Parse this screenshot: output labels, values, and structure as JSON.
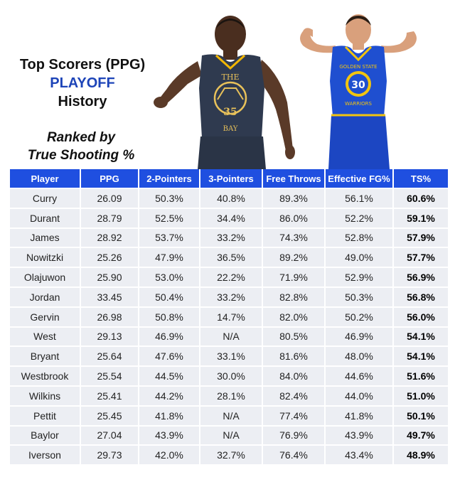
{
  "header": {
    "title_line1": "Top Scorers (PPG)",
    "title_line2": "PLAYOFF",
    "title_line3": "History",
    "subtitle_line1": "Ranked by",
    "subtitle_line2": "True Shooting %"
  },
  "colors": {
    "header_bg": "#1f4fe0",
    "row_bg": "#eceef3",
    "title_accent": "#1d44b8"
  },
  "players_art": {
    "left_jersey_text": "THE",
    "left_jersey_number": "35",
    "left_jersey_bottom": "BAY",
    "right_jersey_text": "GOLDEN STATE",
    "right_jersey_number": "30",
    "right_jersey_bottom": "WARRIORS"
  },
  "chart_data": {
    "type": "table",
    "title": "Top Scorers (PPG) PLAYOFF History",
    "subtitle": "Ranked by True Shooting %",
    "columns": [
      "Player",
      "PPG",
      "2-Pointers",
      "3-Pointers",
      "Free Throws",
      "Effective FG%",
      "TS%"
    ],
    "rows": [
      [
        "Curry",
        "26.09",
        "50.3%",
        "40.8%",
        "89.3%",
        "56.1%",
        "60.6%"
      ],
      [
        "Durant",
        "28.79",
        "52.5%",
        "34.4%",
        "86.0%",
        "52.2%",
        "59.1%"
      ],
      [
        "James",
        "28.92",
        "53.7%",
        "33.2%",
        "74.3%",
        "52.8%",
        "57.9%"
      ],
      [
        "Nowitzki",
        "25.26",
        "47.9%",
        "36.5%",
        "89.2%",
        "49.0%",
        "57.7%"
      ],
      [
        "Olajuwon",
        "25.90",
        "53.0%",
        "22.2%",
        "71.9%",
        "52.9%",
        "56.9%"
      ],
      [
        "Jordan",
        "33.45",
        "50.4%",
        "33.2%",
        "82.8%",
        "50.3%",
        "56.8%"
      ],
      [
        "Gervin",
        "26.98",
        "50.8%",
        "14.7%",
        "82.0%",
        "50.2%",
        "56.0%"
      ],
      [
        "West",
        "29.13",
        "46.9%",
        "N/A",
        "80.5%",
        "46.9%",
        "54.1%"
      ],
      [
        "Bryant",
        "25.64",
        "47.6%",
        "33.1%",
        "81.6%",
        "48.0%",
        "54.1%"
      ],
      [
        "Westbrook",
        "25.54",
        "44.5%",
        "30.0%",
        "84.0%",
        "44.6%",
        "51.6%"
      ],
      [
        "Wilkins",
        "25.41",
        "44.2%",
        "28.1%",
        "82.4%",
        "44.0%",
        "51.0%"
      ],
      [
        "Pettit",
        "25.45",
        "41.8%",
        "N/A",
        "77.4%",
        "41.8%",
        "50.1%"
      ],
      [
        "Baylor",
        "27.04",
        "43.9%",
        "N/A",
        "76.9%",
        "43.9%",
        "49.7%"
      ],
      [
        "Iverson",
        "29.73",
        "42.0%",
        "32.7%",
        "76.4%",
        "43.4%",
        "48.9%"
      ]
    ]
  }
}
